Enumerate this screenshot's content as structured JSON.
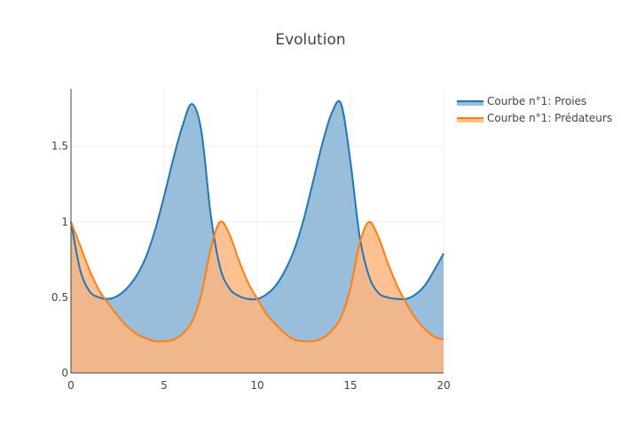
{
  "chart_data": {
    "type": "area",
    "title": "Evolution",
    "xlabel": "",
    "ylabel": "",
    "xlim": [
      0,
      20
    ],
    "ylim": [
      0,
      1.88
    ],
    "x_ticks": [
      0,
      5,
      10,
      15,
      20
    ],
    "x_tick_labels": [
      "0",
      "5",
      "10",
      "15",
      "20"
    ],
    "y_ticks": [
      0,
      0.5,
      1,
      1.5
    ],
    "y_tick_labels": [
      "0",
      "0.5",
      "1",
      "1.5"
    ],
    "grid": true,
    "legend_position": "top-right",
    "x": [
      0,
      0.5,
      1,
      1.5,
      2,
      2.5,
      3,
      3.5,
      4,
      4.5,
      5,
      5.5,
      6,
      6.5,
      7,
      7.5,
      8,
      8.5,
      9,
      9.5,
      10,
      10.5,
      11,
      11.5,
      12,
      12.5,
      13,
      13.5,
      14,
      14.5,
      15,
      15.5,
      16,
      16.5,
      17,
      17.5,
      18,
      18.5,
      19,
      19.5,
      20
    ],
    "series": [
      {
        "name": "Courbe n°1: Proies",
        "color": "#1f77b4",
        "fill": "#87b3d6",
        "values": [
          1.0,
          0.68,
          0.54,
          0.5,
          0.49,
          0.51,
          0.56,
          0.64,
          0.76,
          0.94,
          1.17,
          1.42,
          1.64,
          1.78,
          1.6,
          1.05,
          0.7,
          0.56,
          0.51,
          0.49,
          0.49,
          0.52,
          0.58,
          0.68,
          0.82,
          1.02,
          1.27,
          1.52,
          1.72,
          1.78,
          1.4,
          0.9,
          0.64,
          0.53,
          0.5,
          0.49,
          0.49,
          0.52,
          0.58,
          0.68,
          0.79
        ]
      },
      {
        "name": "Courbe n°1: Prédateurs",
        "color": "#ff7f0e",
        "fill": "#ffb67e",
        "values": [
          1.0,
          0.84,
          0.68,
          0.55,
          0.46,
          0.38,
          0.31,
          0.26,
          0.23,
          0.21,
          0.21,
          0.22,
          0.26,
          0.34,
          0.52,
          0.82,
          1.0,
          0.92,
          0.75,
          0.6,
          0.49,
          0.39,
          0.32,
          0.26,
          0.22,
          0.21,
          0.21,
          0.23,
          0.28,
          0.37,
          0.56,
          0.86,
          1.0,
          0.9,
          0.73,
          0.58,
          0.46,
          0.36,
          0.29,
          0.24,
          0.22
        ]
      }
    ]
  }
}
